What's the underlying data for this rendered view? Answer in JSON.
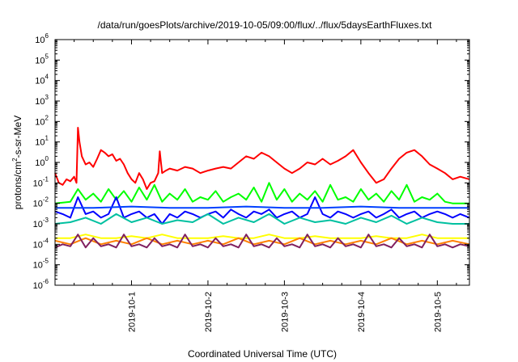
{
  "chart_data": {
    "type": "line",
    "title": "/data/run/goesPlots/archive/2019-10-05/09:00/flux/../flux/5daysEarthFluxes.txt",
    "xlabel": "Coordinated Universal Time (UTC)",
    "ylabel": {
      "pre": "protons/cm",
      "sup": "2",
      "post": "-s-sr-MeV"
    },
    "log_y": true,
    "ylim": [
      1e-06,
      1000000.0
    ],
    "xlim": [
      0,
      5.42
    ],
    "x_unit": "days after 2019-09-30 00:00 UTC",
    "y_ticks": [
      {
        "base": "10",
        "exp": "-6",
        "value": -6
      },
      {
        "base": "10",
        "exp": "-5",
        "value": -5
      },
      {
        "base": "10",
        "exp": "-4",
        "value": -4
      },
      {
        "base": "10",
        "exp": "-3",
        "value": -3
      },
      {
        "base": "10",
        "exp": "-2",
        "value": -2
      },
      {
        "base": "10",
        "exp": "-1",
        "value": -1
      },
      {
        "base": "10",
        "exp": "0",
        "value": 0
      },
      {
        "base": "10",
        "exp": "1",
        "value": 1
      },
      {
        "base": "10",
        "exp": "2",
        "value": 2
      },
      {
        "base": "10",
        "exp": "3",
        "value": 3
      },
      {
        "base": "10",
        "exp": "4",
        "value": 4
      },
      {
        "base": "10",
        "exp": "5",
        "value": 5
      },
      {
        "base": "10",
        "exp": "6",
        "value": 6
      }
    ],
    "x_ticks": [
      {
        "label": "2019-10-1",
        "value": 1
      },
      {
        "label": "2019-10-2",
        "value": 2
      },
      {
        "label": "2019-10-3",
        "value": 3
      },
      {
        "label": "2019-10-4",
        "value": 4
      },
      {
        "label": "2019-10-5",
        "value": 5
      }
    ],
    "grid": false,
    "legend": "none",
    "series": [
      {
        "color": "#ff0000",
        "x": [
          0,
          0.05,
          0.1,
          0.15,
          0.2,
          0.25,
          0.28,
          0.3,
          0.32,
          0.35,
          0.4,
          0.45,
          0.5,
          0.55,
          0.6,
          0.65,
          0.7,
          0.75,
          0.8,
          0.85,
          0.9,
          0.95,
          1.0,
          1.05,
          1.1,
          1.15,
          1.2,
          1.25,
          1.3,
          1.35,
          1.37,
          1.4,
          1.45,
          1.5,
          1.6,
          1.7,
          1.8,
          1.9,
          2.0,
          2.1,
          2.2,
          2.3,
          2.4,
          2.5,
          2.6,
          2.7,
          2.8,
          2.9,
          3.0,
          3.1,
          3.2,
          3.3,
          3.4,
          3.5,
          3.6,
          3.7,
          3.8,
          3.9,
          4.0,
          4.1,
          4.2,
          4.3,
          4.4,
          4.5,
          4.6,
          4.7,
          4.8,
          4.9,
          5.0,
          5.1,
          5.2,
          5.3,
          5.42
        ],
        "y": [
          0.3,
          0.1,
          0.08,
          0.15,
          0.12,
          0.2,
          0.1,
          50,
          10,
          2,
          0.8,
          1,
          0.6,
          1.5,
          4,
          3,
          2,
          2.5,
          1.2,
          1.5,
          0.8,
          0.3,
          0.15,
          0.1,
          0.3,
          0.15,
          0.05,
          0.1,
          0.12,
          0.3,
          3.5,
          0.3,
          0.4,
          0.5,
          0.4,
          0.6,
          0.5,
          0.3,
          0.4,
          0.5,
          0.6,
          0.5,
          1,
          2,
          1.5,
          3,
          2,
          1,
          0.5,
          0.3,
          0.5,
          1,
          0.8,
          1.5,
          0.8,
          1.2,
          2,
          4,
          1,
          0.3,
          0.1,
          0.15,
          0.5,
          1.5,
          3,
          4,
          2,
          0.8,
          0.5,
          0.3,
          0.15,
          0.2,
          0.15
        ]
      },
      {
        "color": "#00ff00",
        "x": [
          0,
          0.2,
          0.3,
          0.4,
          0.5,
          0.6,
          0.7,
          0.8,
          0.9,
          1.0,
          1.1,
          1.2,
          1.3,
          1.4,
          1.5,
          1.6,
          1.7,
          1.8,
          1.9,
          2.0,
          2.1,
          2.2,
          2.3,
          2.4,
          2.5,
          2.6,
          2.7,
          2.8,
          2.9,
          3.0,
          3.1,
          3.2,
          3.3,
          3.4,
          3.5,
          3.6,
          3.7,
          3.8,
          3.9,
          4.0,
          4.1,
          4.2,
          4.3,
          4.4,
          4.5,
          4.6,
          4.7,
          4.8,
          4.9,
          5.0,
          5.1,
          5.2,
          5.3,
          5.42
        ],
        "y": [
          0.01,
          0.012,
          0.05,
          0.015,
          0.03,
          0.012,
          0.05,
          0.015,
          0.04,
          0.012,
          0.06,
          0.015,
          0.08,
          0.012,
          0.03,
          0.015,
          0.05,
          0.012,
          0.02,
          0.015,
          0.04,
          0.012,
          0.02,
          0.03,
          0.015,
          0.06,
          0.012,
          0.1,
          0.015,
          0.05,
          0.012,
          0.03,
          0.015,
          0.04,
          0.012,
          0.08,
          0.015,
          0.02,
          0.012,
          0.05,
          0.015,
          0.03,
          0.012,
          0.04,
          0.015,
          0.08,
          0.012,
          0.02,
          0.015,
          0.03,
          0.012,
          0.01,
          0.01,
          0.01
        ]
      },
      {
        "color": "#0000ff",
        "x": [
          0,
          0.1,
          0.2,
          0.3,
          0.4,
          0.5,
          0.6,
          0.7,
          0.8,
          0.9,
          1.0,
          1.1,
          1.2,
          1.3,
          1.4,
          1.5,
          1.6,
          1.7,
          1.8,
          1.9,
          2.0,
          2.1,
          2.2,
          2.3,
          2.4,
          2.5,
          2.6,
          2.7,
          2.8,
          2.9,
          3.0,
          3.1,
          3.2,
          3.3,
          3.4,
          3.5,
          3.6,
          3.7,
          3.8,
          3.9,
          4.0,
          4.1,
          4.2,
          4.3,
          4.4,
          4.5,
          4.6,
          4.7,
          4.8,
          4.9,
          5.0,
          5.1,
          5.2,
          5.3,
          5.42
        ],
        "y": [
          0.004,
          0.003,
          0.002,
          0.02,
          0.003,
          0.004,
          0.002,
          0.003,
          0.02,
          0.002,
          0.003,
          0.004,
          0.002,
          0.003,
          0.001,
          0.003,
          0.002,
          0.004,
          0.003,
          0.002,
          0.003,
          0.004,
          0.002,
          0.005,
          0.003,
          0.002,
          0.004,
          0.003,
          0.005,
          0.002,
          0.003,
          0.004,
          0.002,
          0.003,
          0.02,
          0.003,
          0.002,
          0.004,
          0.003,
          0.002,
          0.003,
          0.004,
          0.002,
          0.003,
          0.005,
          0.002,
          0.003,
          0.004,
          0.002,
          0.003,
          0.004,
          0.003,
          0.002,
          0.003,
          0.002
        ]
      },
      {
        "color": "#0040ff",
        "x": [
          0,
          0.5,
          1.0,
          1.5,
          2.0,
          2.5,
          3.0,
          3.5,
          4.0,
          4.5,
          5.0,
          5.42
        ],
        "y": [
          0.006,
          0.006,
          0.007,
          0.006,
          0.006,
          0.007,
          0.006,
          0.006,
          0.007,
          0.006,
          0.006,
          0.006
        ]
      },
      {
        "color": "#00c0a0",
        "x": [
          0,
          0.2,
          0.4,
          0.6,
          0.8,
          1.0,
          1.2,
          1.4,
          1.6,
          1.8,
          2.0,
          2.2,
          2.4,
          2.6,
          2.8,
          3.0,
          3.2,
          3.4,
          3.6,
          3.8,
          4.0,
          4.2,
          4.4,
          4.6,
          4.8,
          5.0,
          5.2,
          5.42
        ],
        "y": [
          0.001,
          0.0012,
          0.002,
          0.001,
          0.003,
          0.0012,
          0.002,
          0.001,
          0.0015,
          0.0012,
          0.003,
          0.001,
          0.002,
          0.0012,
          0.003,
          0.001,
          0.002,
          0.0012,
          0.0015,
          0.001,
          0.002,
          0.0012,
          0.0025,
          0.001,
          0.002,
          0.0012,
          0.001,
          0.001
        ]
      },
      {
        "color": "#ffff00",
        "x": [
          0,
          0.2,
          0.4,
          0.6,
          0.8,
          1.0,
          1.2,
          1.4,
          1.6,
          1.8,
          2.0,
          2.2,
          2.4,
          2.6,
          2.8,
          3.0,
          3.2,
          3.4,
          3.6,
          3.8,
          4.0,
          4.2,
          4.4,
          4.6,
          4.8,
          5.0,
          5.2,
          5.42
        ],
        "y": [
          0.0002,
          0.0002,
          0.0003,
          0.0002,
          0.0002,
          0.00025,
          0.0002,
          0.0003,
          0.0002,
          0.0002,
          0.0002,
          0.00025,
          0.0002,
          0.0002,
          0.0003,
          0.0002,
          0.0002,
          0.00025,
          0.0002,
          0.0002,
          0.0002,
          0.00025,
          0.0002,
          0.0002,
          0.0003,
          0.0002,
          0.0002,
          0.0002
        ]
      },
      {
        "color": "#ff8000",
        "x": [
          0,
          0.2,
          0.4,
          0.6,
          0.8,
          1.0,
          1.2,
          1.4,
          1.6,
          1.8,
          2.0,
          2.2,
          2.4,
          2.6,
          2.8,
          3.0,
          3.2,
          3.4,
          3.6,
          3.8,
          4.0,
          4.2,
          4.4,
          4.6,
          4.8,
          5.0,
          5.2,
          5.42
        ],
        "y": [
          0.00015,
          0.0001,
          0.0002,
          0.0001,
          0.00015,
          0.0001,
          0.0002,
          0.0001,
          0.00015,
          0.0001,
          0.00015,
          0.0001,
          0.0002,
          0.0001,
          0.00015,
          0.0001,
          0.0002,
          0.0001,
          0.00015,
          0.0001,
          0.00015,
          0.0001,
          0.0002,
          0.0001,
          0.00015,
          0.0001,
          0.00015,
          0.0001
        ]
      },
      {
        "color": "#802060",
        "x": [
          0,
          0.1,
          0.2,
          0.3,
          0.4,
          0.5,
          0.6,
          0.7,
          0.8,
          0.9,
          1.0,
          1.1,
          1.2,
          1.3,
          1.4,
          1.5,
          1.6,
          1.7,
          1.8,
          1.9,
          2.0,
          2.1,
          2.2,
          2.3,
          2.4,
          2.5,
          2.6,
          2.7,
          2.8,
          2.9,
          3.0,
          3.1,
          3.2,
          3.3,
          3.4,
          3.5,
          3.6,
          3.7,
          3.8,
          3.9,
          4.0,
          4.1,
          4.2,
          4.3,
          4.4,
          4.5,
          4.6,
          4.7,
          4.8,
          4.9,
          5.0,
          5.1,
          5.2,
          5.3,
          5.42
        ],
        "y": [
          7e-05,
          0.0001,
          8e-05,
          0.0003,
          7e-05,
          0.0002,
          8e-05,
          0.0001,
          7e-05,
          0.0003,
          8e-05,
          0.0001,
          7e-05,
          0.0002,
          8e-05,
          0.0001,
          7e-05,
          0.0003,
          8e-05,
          0.0001,
          7e-05,
          0.0002,
          8e-05,
          0.0001,
          7e-05,
          0.0003,
          8e-05,
          0.0001,
          7e-05,
          0.0002,
          8e-05,
          0.0001,
          7e-05,
          0.0003,
          8e-05,
          0.0001,
          7e-05,
          0.0002,
          8e-05,
          0.0001,
          7e-05,
          0.0003,
          8e-05,
          0.0001,
          7e-05,
          0.0002,
          8e-05,
          0.0001,
          7e-05,
          0.0003,
          8e-05,
          0.0001,
          7e-05,
          0.0001,
          8e-05
        ]
      }
    ]
  }
}
